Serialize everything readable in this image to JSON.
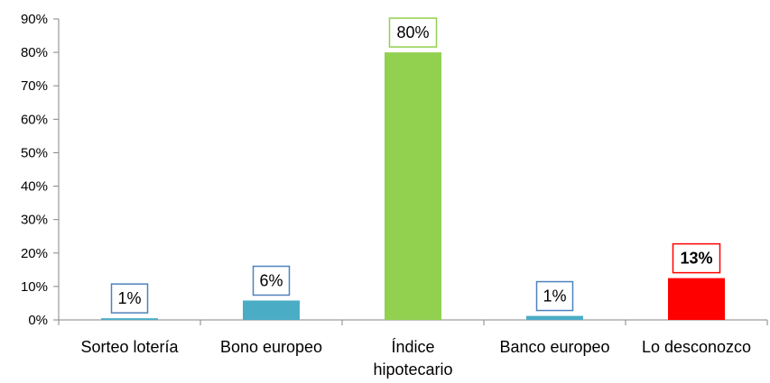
{
  "chart_data": {
    "type": "bar",
    "title": "",
    "xlabel": "",
    "ylabel": "",
    "ylim": [
      0,
      90
    ],
    "y_ticks": [
      0,
      10,
      20,
      30,
      40,
      50,
      60,
      70,
      80,
      90
    ],
    "y_tick_labels": [
      "0%",
      "10%",
      "20%",
      "30%",
      "40%",
      "50%",
      "60%",
      "70%",
      "80%",
      "90%"
    ],
    "grid": false,
    "legend": "none",
    "categories": [
      [
        "Sorteo lotería"
      ],
      [
        "Bono europeo"
      ],
      [
        "Índice",
        "hipotecario"
      ],
      [
        "Banco europeo"
      ],
      [
        "Lo desconozco"
      ]
    ],
    "values": [
      0.5,
      5.8,
      80,
      1.2,
      12.5
    ],
    "data_labels": [
      "1%",
      "6%",
      "80%",
      "1%",
      "13%"
    ],
    "bar_colors": [
      "#4bacc6",
      "#4bacc6",
      "#92d050",
      "#4bacc6",
      "#ff0000"
    ],
    "label_border_colors": [
      "#4f81bd",
      "#4f81bd",
      "#92d050",
      "#4f81bd",
      "#ff0000"
    ],
    "label_text_colors": [
      "#000000",
      "#000000",
      "#000000",
      "#000000",
      "#ff0000"
    ],
    "label_bold": [
      false,
      false,
      false,
      false,
      true
    ],
    "axis_color": "#868686"
  }
}
